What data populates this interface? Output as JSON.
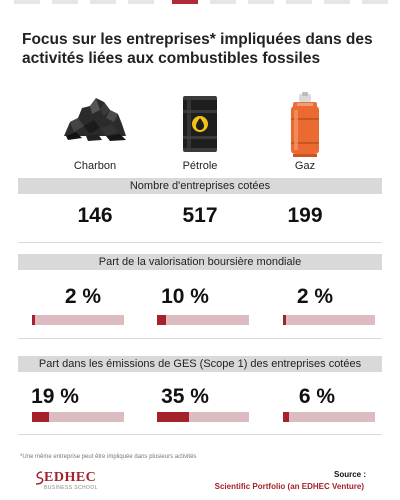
{
  "title": "Focus sur les entreprises* impliquées dans des activités liées aux combustibles fossiles",
  "fuels": [
    {
      "label": "Charbon",
      "icon": "coal-icon"
    },
    {
      "label": "Pétrole",
      "icon": "oil-barrel-icon"
    },
    {
      "label": "Gaz",
      "icon": "gas-cylinder-icon"
    }
  ],
  "colors": {
    "accent": "#a4222b",
    "track": "#dcbcc0",
    "section_band": "#d9d9d9"
  },
  "chart_data": [
    {
      "type": "table",
      "title": "Nombre d'entreprises cotées",
      "categories": [
        "Charbon",
        "Pétrole",
        "Gaz"
      ],
      "values": [
        146,
        517,
        199
      ],
      "labels": [
        "146",
        "517",
        "199"
      ]
    },
    {
      "type": "bar",
      "title": "Part de la valorisation boursière mondiale",
      "categories": [
        "Charbon",
        "Pétrole",
        "Gaz"
      ],
      "values": [
        2,
        10,
        2
      ],
      "labels": [
        "2 %",
        "10 %",
        "2 %"
      ],
      "ylim": [
        0,
        100
      ]
    },
    {
      "type": "bar",
      "title": "Part dans les émissions de GES (Scope 1) des entreprises cotées",
      "categories": [
        "Charbon",
        "Pétrole",
        "Gaz"
      ],
      "values": [
        19,
        35,
        6
      ],
      "labels": [
        "19 %",
        "35 %",
        "6 %"
      ],
      "ylim": [
        0,
        100
      ]
    }
  ],
  "footnote": "*Une même entreprise peut être impliquée dans plusieurs activités",
  "logo": {
    "name": "EDHEC",
    "subtitle": "BUSINESS SCHOOL"
  },
  "source": {
    "label": "Source :",
    "text": "Scientific Portfolio (an EDHEC Venture)"
  }
}
